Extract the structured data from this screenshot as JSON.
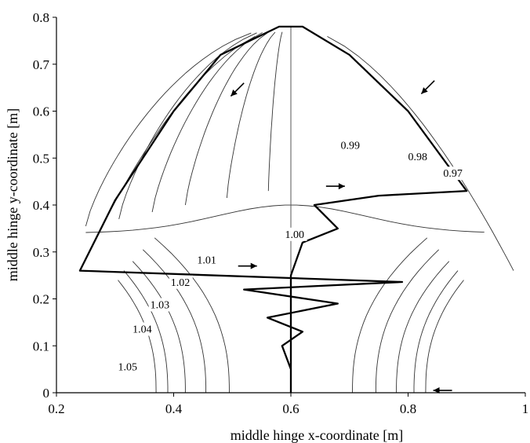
{
  "chart_data": {
    "type": "line",
    "title": "",
    "xlabel": "middle hinge x-coordinate [m]",
    "ylabel": "middle hinge y-coordinate [m]",
    "xlim": [
      0.2,
      1.0
    ],
    "ylim": [
      0,
      0.8
    ],
    "xticks": [
      "0.2",
      "0.4",
      "0.6",
      "0.8",
      "1"
    ],
    "yticks": [
      "0",
      "0.1",
      "0.2",
      "0.3",
      "0.4",
      "0.5",
      "0.6",
      "0.7",
      "0.8"
    ],
    "grid": false,
    "legend": "none",
    "contour_labels": [
      {
        "text": "0.99",
        "x": 0.685,
        "y": 0.52
      },
      {
        "text": "0.98",
        "x": 0.8,
        "y": 0.495
      },
      {
        "text": "0.97",
        "x": 0.86,
        "y": 0.46
      },
      {
        "text": "1.00",
        "x": 0.59,
        "y": 0.33
      },
      {
        "text": "1.01",
        "x": 0.44,
        "y": 0.275
      },
      {
        "text": "1.02",
        "x": 0.395,
        "y": 0.228
      },
      {
        "text": "1.03",
        "x": 0.36,
        "y": 0.18
      },
      {
        "text": "1.04",
        "x": 0.33,
        "y": 0.128
      },
      {
        "text": "1.05",
        "x": 0.305,
        "y": 0.048
      }
    ],
    "upper_contours": [
      {
        "bulge": 0.24,
        "ybase": 0.355
      },
      {
        "bulge": 0.2,
        "ybase": 0.37
      },
      {
        "bulge": 0.16,
        "ybase": 0.385
      },
      {
        "bulge": 0.12,
        "ybase": 0.4
      },
      {
        "bulge": 0.07,
        "ybase": 0.415
      },
      {
        "bulge": 0.02,
        "ybase": 0.43
      }
    ],
    "lower_contours": [
      {
        "xbottom": 0.37,
        "ytop": 0.24
      },
      {
        "xbottom": 0.39,
        "ytop": 0.26
      },
      {
        "xbottom": 0.42,
        "ytop": 0.28
      },
      {
        "xbottom": 0.455,
        "ytop": 0.305
      },
      {
        "xbottom": 0.495,
        "ytop": 0.33
      }
    ],
    "trajectory": [
      [
        0.6,
        0.0
      ],
      [
        0.6,
        0.05
      ],
      [
        0.585,
        0.1
      ],
      [
        0.62,
        0.13
      ],
      [
        0.56,
        0.16
      ],
      [
        0.68,
        0.19
      ],
      [
        0.52,
        0.22
      ],
      [
        0.79,
        0.236
      ],
      [
        0.24,
        0.26
      ],
      [
        0.3,
        0.41
      ],
      [
        0.4,
        0.6
      ],
      [
        0.48,
        0.72
      ],
      [
        0.58,
        0.78
      ],
      [
        0.62,
        0.78
      ],
      [
        0.7,
        0.72
      ],
      [
        0.8,
        0.6
      ],
      [
        0.9,
        0.43
      ],
      [
        0.75,
        0.42
      ],
      [
        0.64,
        0.4
      ],
      [
        0.68,
        0.35
      ],
      [
        0.62,
        0.32
      ],
      [
        0.6,
        0.25
      ],
      [
        0.6,
        0.0
      ]
    ],
    "arrows": [
      {
        "x": 0.52,
        "y": 0.66,
        "dir": "down-left"
      },
      {
        "x": 0.845,
        "y": 0.665,
        "dir": "down-left"
      },
      {
        "x": 0.66,
        "y": 0.44,
        "dir": "right"
      },
      {
        "x": 0.51,
        "y": 0.27,
        "dir": "right"
      },
      {
        "x": 0.875,
        "y": 0.005,
        "dir": "left"
      }
    ]
  }
}
